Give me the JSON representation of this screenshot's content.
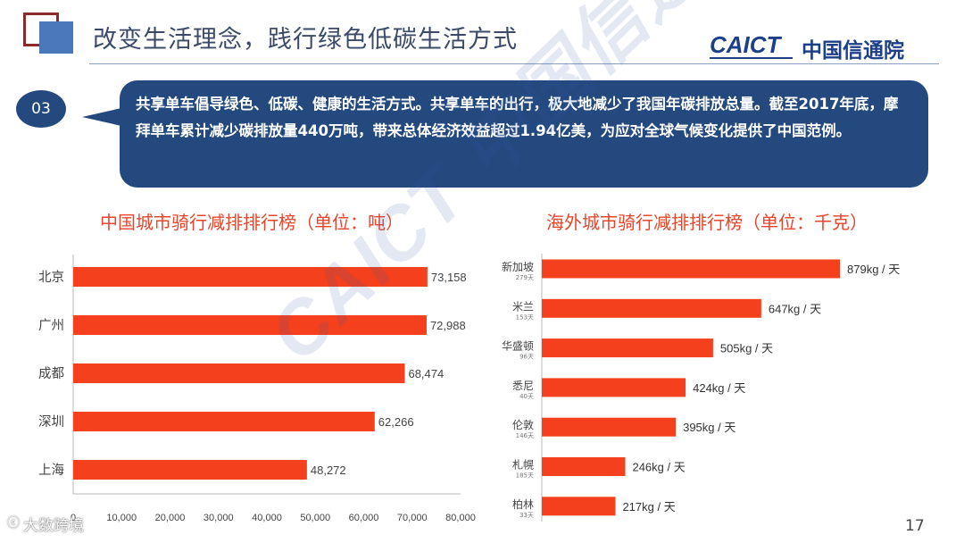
{
  "header": {
    "title": "改变生活理念，践行绿色低碳生活方式",
    "logo_latin": "CAICT",
    "logo_cn": "中国信通院"
  },
  "callout": {
    "number": "03",
    "text": "共享单车倡导绿色、低碳、健康的生活方式。共享单车的出行，极大地减少了我国年碳排放总量。截至2017年底，摩拜单车累计减少碳排放量440万吨，带来总体经济效益超过1.94亿美，为应对全球气候变化提供了中国范例。"
  },
  "chart_data": [
    {
      "type": "bar",
      "orientation": "horizontal",
      "title": "中国城市骑行减排排行榜（单位：吨）",
      "categories": [
        "北京",
        "广州",
        "成都",
        "深圳",
        "上海"
      ],
      "values": [
        73158,
        72988,
        68474,
        62266,
        48272
      ],
      "value_labels": [
        "73,158",
        "72,988",
        "68,474",
        "62,266",
        "48,272"
      ],
      "xlim": [
        0,
        80000
      ],
      "ticks": [
        0,
        10000,
        20000,
        30000,
        40000,
        50000,
        60000,
        70000,
        80000
      ],
      "tick_labels": [
        "0",
        "10,000",
        "20,000",
        "30,000",
        "40,000",
        "50,000",
        "60,000",
        "70,000",
        "80,000"
      ],
      "bar_color": "#f4401c"
    },
    {
      "type": "bar",
      "orientation": "horizontal",
      "title": "海外城市骑行减排排行榜（单位：千克）",
      "categories": [
        "新加坡",
        "米兰",
        "华盛顿",
        "悉尼",
        "伦敦",
        "札幌",
        "柏林"
      ],
      "sublabels": [
        "279天",
        "153天",
        "96天",
        "40天",
        "146天",
        "185天",
        "33天"
      ],
      "values": [
        879,
        647,
        505,
        424,
        395,
        246,
        217
      ],
      "value_labels": [
        "879kg / 天",
        "647kg / 天",
        "505kg / 天",
        "424kg / 天",
        "395kg / 天",
        "246kg / 天",
        "217kg / 天"
      ],
      "xlim": [
        0,
        1000
      ],
      "bar_color": "#f4401c"
    }
  ],
  "watermark": {
    "diagonal": "CAICT 中国信通院",
    "icon": "ⓒ",
    "footer": "大数跨境"
  },
  "page_number": "17"
}
